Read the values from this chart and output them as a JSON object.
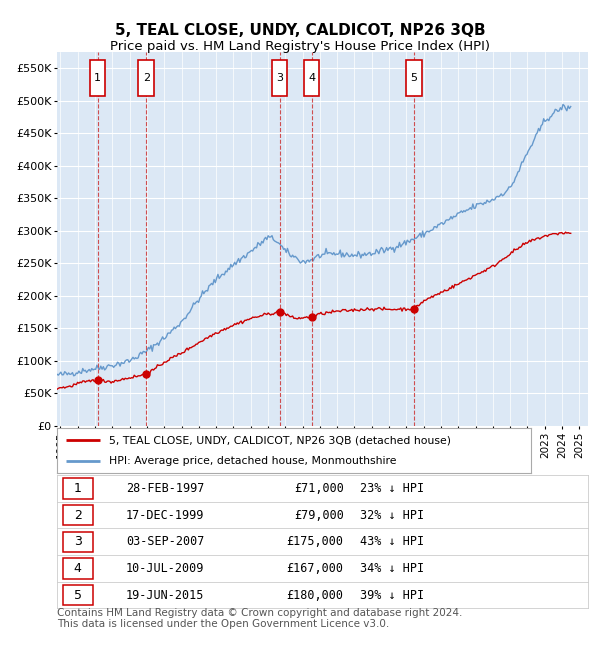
{
  "title": "5, TEAL CLOSE, UNDY, CALDICOT, NP26 3QB",
  "subtitle": "Price paid vs. HM Land Registry's House Price Index (HPI)",
  "ylim": [
    0,
    575000
  ],
  "yticks": [
    0,
    50000,
    100000,
    150000,
    200000,
    250000,
    300000,
    350000,
    400000,
    450000,
    500000,
    550000
  ],
  "ytick_labels": [
    "£0",
    "£50K",
    "£100K",
    "£150K",
    "£200K",
    "£250K",
    "£300K",
    "£350K",
    "£400K",
    "£450K",
    "£500K",
    "£550K"
  ],
  "xlim_start": 1994.8,
  "xlim_end": 2025.5,
  "plot_bg_color": "#dce8f5",
  "grid_color": "#ffffff",
  "sale_events": [
    {
      "num": 1,
      "year": 1997.15,
      "price": 71000,
      "label": "28-FEB-1997",
      "price_str": "£71,000",
      "pct": "23%"
    },
    {
      "num": 2,
      "year": 1999.96,
      "price": 79000,
      "label": "17-DEC-1999",
      "price_str": "£79,000",
      "pct": "32%"
    },
    {
      "num": 3,
      "year": 2007.67,
      "price": 175000,
      "label": "03-SEP-2007",
      "price_str": "£175,000",
      "pct": "43%"
    },
    {
      "num": 4,
      "year": 2009.52,
      "price": 167000,
      "label": "10-JUL-2009",
      "price_str": "£167,000",
      "pct": "34%"
    },
    {
      "num": 5,
      "year": 2015.44,
      "price": 180000,
      "label": "19-JUN-2015",
      "price_str": "£180,000",
      "pct": "39%"
    }
  ],
  "red_line_color": "#cc0000",
  "blue_line_color": "#6699cc",
  "sale_dot_color": "#cc0000",
  "vline_color": "#cc3333",
  "box_color": "#cc0000",
  "legend_line1": "5, TEAL CLOSE, UNDY, CALDICOT, NP26 3QB (detached house)",
  "legend_line2": "HPI: Average price, detached house, Monmouthshire",
  "footer": "Contains HM Land Registry data © Crown copyright and database right 2024.\nThis data is licensed under the Open Government Licence v3.0.",
  "title_fontsize": 11,
  "subtitle_fontsize": 9.5,
  "tick_fontsize": 8,
  "footer_fontsize": 7.5,
  "hpi_years_key": [
    1994.8,
    1995.5,
    1996,
    1997,
    1998,
    1999,
    2000,
    2001,
    2002,
    2003,
    2004,
    2005,
    2006,
    2007,
    2007.5,
    2008,
    2009,
    2009.5,
    2010,
    2011,
    2012,
    2013,
    2014,
    2015,
    2016,
    2017,
    2018,
    2019,
    2020,
    2021,
    2022,
    2023,
    2024,
    2024.5
  ],
  "hpi_prices_key": [
    78000,
    80000,
    83000,
    88000,
    93000,
    100000,
    115000,
    135000,
    160000,
    195000,
    225000,
    248000,
    268000,
    290000,
    285000,
    268000,
    252000,
    255000,
    262000,
    265000,
    262000,
    265000,
    272000,
    282000,
    295000,
    310000,
    325000,
    338000,
    348000,
    365000,
    420000,
    470000,
    490000,
    488000
  ],
  "sale_years_key": [
    1994.8,
    1995.5,
    1996,
    1997.15,
    1997.5,
    1998,
    1999,
    1999.96,
    2000.5,
    2001,
    2002,
    2003,
    2004,
    2005,
    2006,
    2007,
    2007.67,
    2008,
    2008.5,
    2009.52,
    2010,
    2011,
    2012,
    2013,
    2014,
    2015.44,
    2016,
    2017,
    2018,
    2019,
    2020,
    2021,
    2022,
    2023,
    2024,
    2024.5
  ],
  "sale_prices_key": [
    58000,
    60000,
    65000,
    71000,
    69000,
    68000,
    74000,
    79000,
    88000,
    98000,
    112000,
    128000,
    143000,
    155000,
    165000,
    172000,
    175000,
    172000,
    165000,
    167000,
    172000,
    176000,
    178000,
    180000,
    179000,
    180000,
    192000,
    205000,
    218000,
    232000,
    245000,
    265000,
    282000,
    292000,
    297000,
    296000
  ]
}
